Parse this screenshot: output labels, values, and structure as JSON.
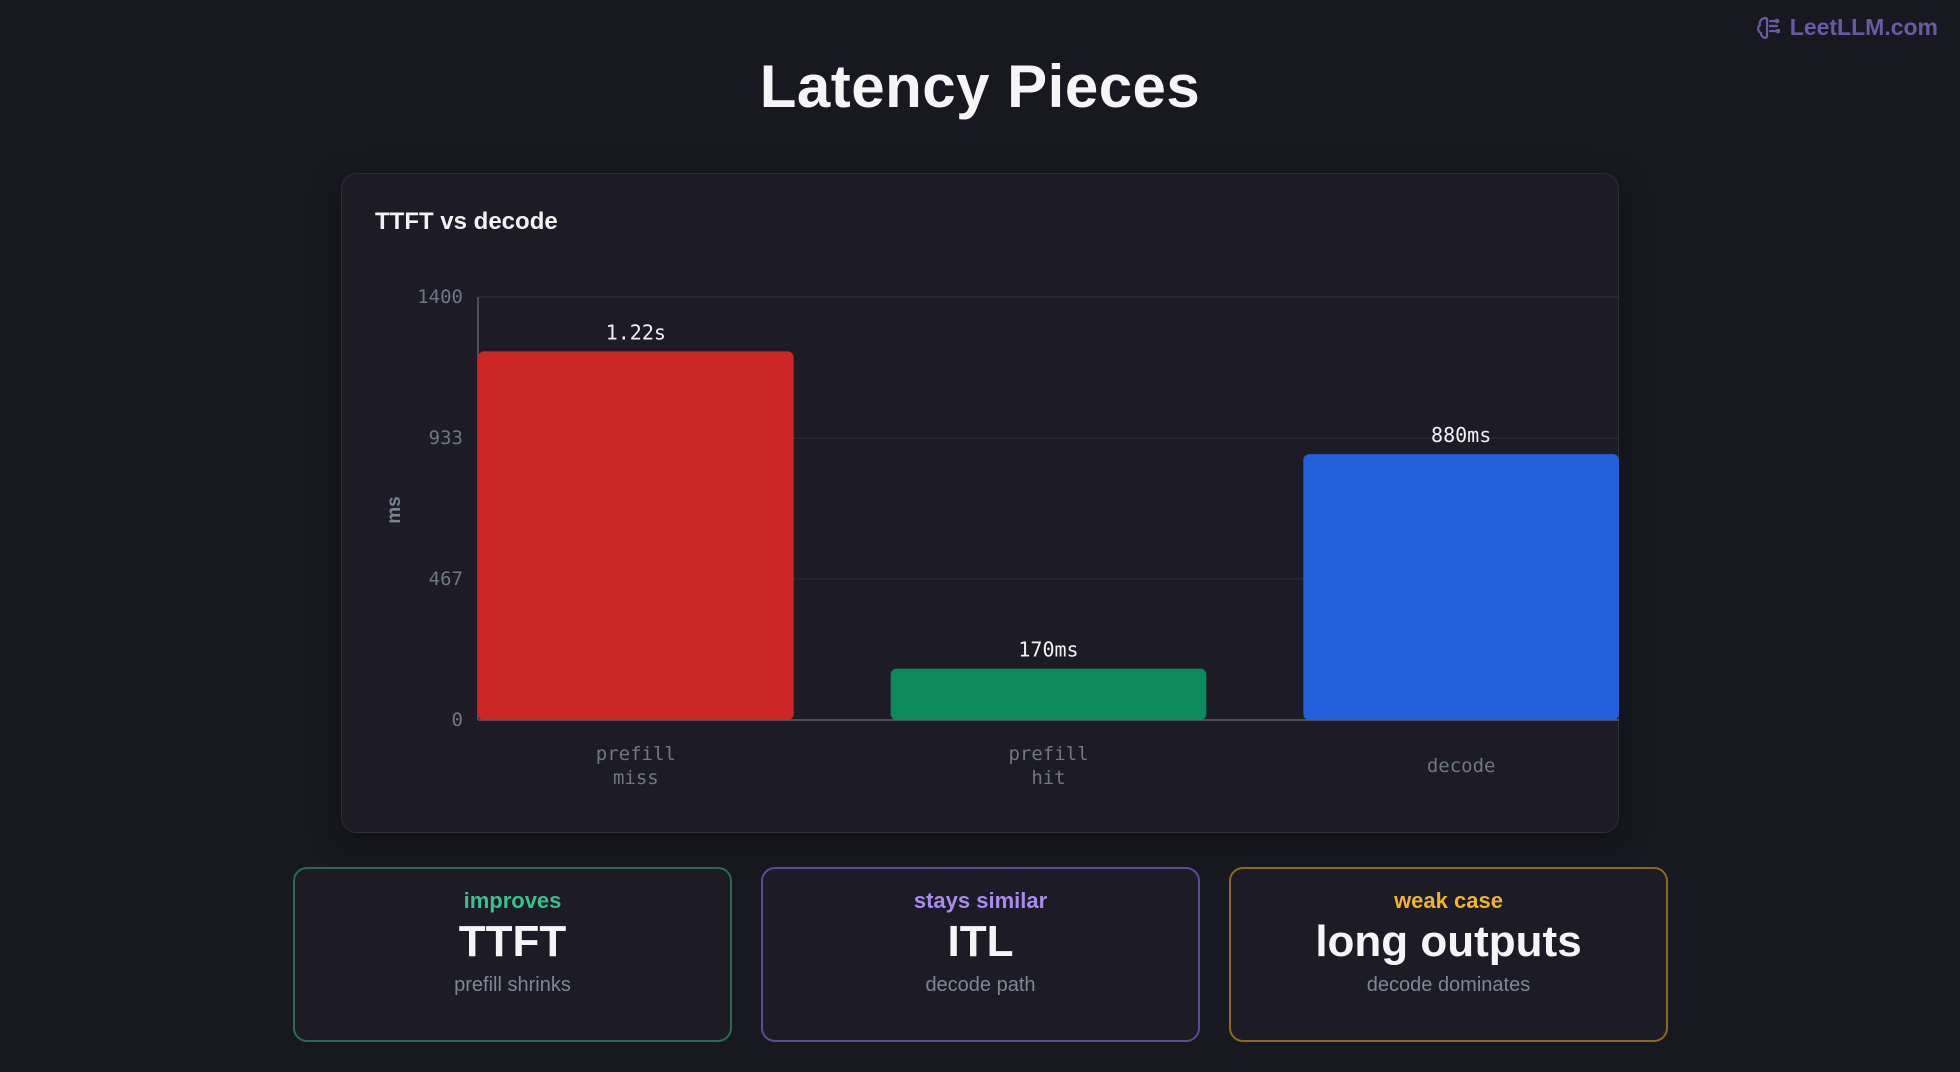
{
  "brand": {
    "name": "LeetLLM.com",
    "icon": "brain-icon",
    "color": "#6a5aa6"
  },
  "page_title": "Latency Pieces",
  "chart_data": {
    "type": "bar",
    "title": "TTFT vs decode",
    "xlabel": "",
    "ylabel": "ms",
    "ylim": [
      0,
      1400
    ],
    "yticks": [
      0,
      467,
      933,
      1400
    ],
    "grid": true,
    "categories": [
      [
        "prefill",
        "miss"
      ],
      [
        "prefill",
        "hit"
      ],
      [
        "decode"
      ]
    ],
    "values": [
      1220,
      170,
      880
    ],
    "data_labels": [
      "1.22s",
      "170ms",
      "880ms"
    ],
    "colors": [
      "#cc2626",
      "#0b8a5e",
      "#2360dc"
    ]
  },
  "tiles": [
    {
      "kicker": "improves",
      "big": "TTFT",
      "sub": "prefill shrinks",
      "accent": "#34c38f",
      "border": "#2a6a55"
    },
    {
      "kicker": "stays similar",
      "big": "ITL",
      "sub": "decode path",
      "accent": "#a98bf0",
      "border": "#5a4c94"
    },
    {
      "kicker": "weak case",
      "big": "long outputs",
      "sub": "decode dominates",
      "accent": "#f0b429",
      "border": "#8a6a1e"
    }
  ]
}
